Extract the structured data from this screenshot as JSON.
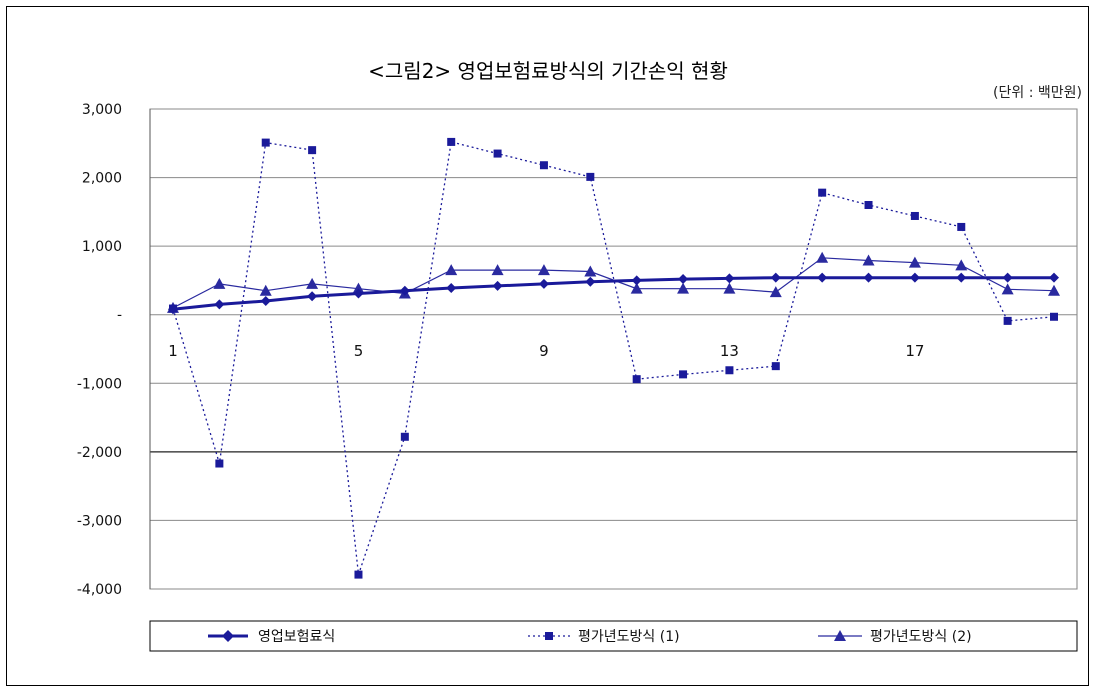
{
  "chart_data": {
    "type": "line",
    "title": "<그림2> 영업보험료방식의 기간손익 현황",
    "unit": "(단위 : 백만원)",
    "x": [
      1,
      2,
      3,
      4,
      5,
      6,
      7,
      8,
      9,
      10,
      11,
      12,
      13,
      14,
      15,
      16,
      17,
      18,
      19,
      20
    ],
    "x_tick_labels": [
      "1",
      "5",
      "9",
      "13",
      "17"
    ],
    "x_tick_values": [
      1,
      5,
      9,
      13,
      17
    ],
    "y_ticks": [
      3000,
      2000,
      1000,
      0,
      -1000,
      -2000,
      -3000,
      -4000
    ],
    "y_tick_labels": [
      "3,000",
      "2,000",
      "1,000",
      "-",
      "-1,000",
      "-2,000",
      "-3,000",
      "-4,000"
    ],
    "ylim": [
      -4000,
      3000
    ],
    "grid": true,
    "legend_position": "bottom",
    "series": [
      {
        "name": "영업보험료식",
        "color": "#1a1a9a",
        "marker": "diamond",
        "line": "solid-thick",
        "values": [
          80,
          150,
          200,
          270,
          310,
          350,
          390,
          420,
          450,
          480,
          500,
          520,
          530,
          540,
          540,
          540,
          540,
          540,
          540,
          540
        ]
      },
      {
        "name": "평가년도방식 (1)",
        "color": "#1a1a9a",
        "marker": "square",
        "line": "dotted",
        "values": [
          90,
          -2170,
          2510,
          2400,
          -3790,
          -1780,
          2520,
          2350,
          2180,
          2010,
          -940,
          -870,
          -810,
          -750,
          1780,
          1600,
          1440,
          1280,
          -90,
          -30
        ]
      },
      {
        "name": "평가년도방식 (2)",
        "color": "#2a2a9f",
        "marker": "triangle",
        "line": "solid-thin",
        "values": [
          100,
          450,
          350,
          450,
          380,
          310,
          650,
          650,
          650,
          630,
          380,
          380,
          380,
          330,
          830,
          790,
          760,
          720,
          370,
          350
        ]
      }
    ]
  }
}
